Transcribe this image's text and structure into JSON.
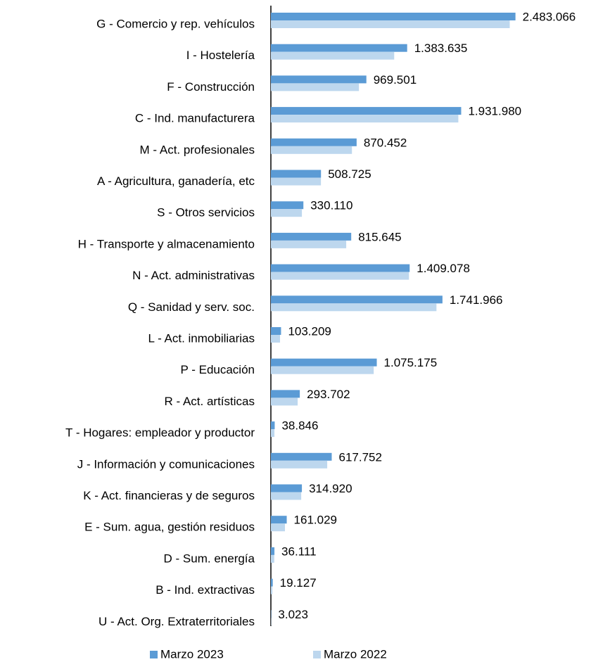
{
  "chart_data": {
    "type": "bar",
    "orientation": "horizontal",
    "categories": [
      "G - Comercio y rep. vehículos",
      "I - Hostelería",
      "F - Construcción",
      "C - Ind. manufacturera",
      "M - Act. profesionales",
      "A - Agricultura, ganadería, etc",
      "S - Otros servicios",
      "H - Transporte y almacenamiento",
      "N - Act. administrativas",
      "Q - Sanidad y serv. soc.",
      "L - Act. inmobiliarias",
      "P - Educación",
      "R - Act. artísticas",
      "T - Hogares: empleador y productor",
      "J - Información y comunicaciones",
      "K - Act. financieras y de seguros",
      "E - Sum. agua, gestión residuos",
      "D - Sum. energía",
      "B - Ind. extractivas",
      "U - Act. Org. Extraterritoriales"
    ],
    "series": [
      {
        "name": "Marzo 2023",
        "color": "#5b9bd5",
        "values": [
          2483066,
          1383635,
          969501,
          1931980,
          870452,
          508725,
          330110,
          815645,
          1409078,
          1741966,
          103209,
          1075175,
          293702,
          38846,
          617752,
          314920,
          161029,
          36111,
          19127,
          3023
        ],
        "value_labels": [
          "2.483.066",
          "1.383.635",
          "969.501",
          "1.931.980",
          "870.452",
          "508.725",
          "330.110",
          "815.645",
          "1.409.078",
          "1.741.966",
          "103.209",
          "1.075.175",
          "293.702",
          "38.846",
          "617.752",
          "314.920",
          "161.029",
          "36.111",
          "19.127",
          "3.023"
        ]
      },
      {
        "name": "Marzo 2022",
        "color": "#bdd7ee",
        "values": [
          2425000,
          1252000,
          894000,
          1903000,
          823000,
          508000,
          315000,
          765000,
          1402000,
          1681000,
          93000,
          1044000,
          272000,
          36000,
          572000,
          308000,
          143000,
          34000,
          15000,
          3000
        ]
      }
    ],
    "xlim": [
      0,
      2500000
    ],
    "legend": "bottom"
  }
}
